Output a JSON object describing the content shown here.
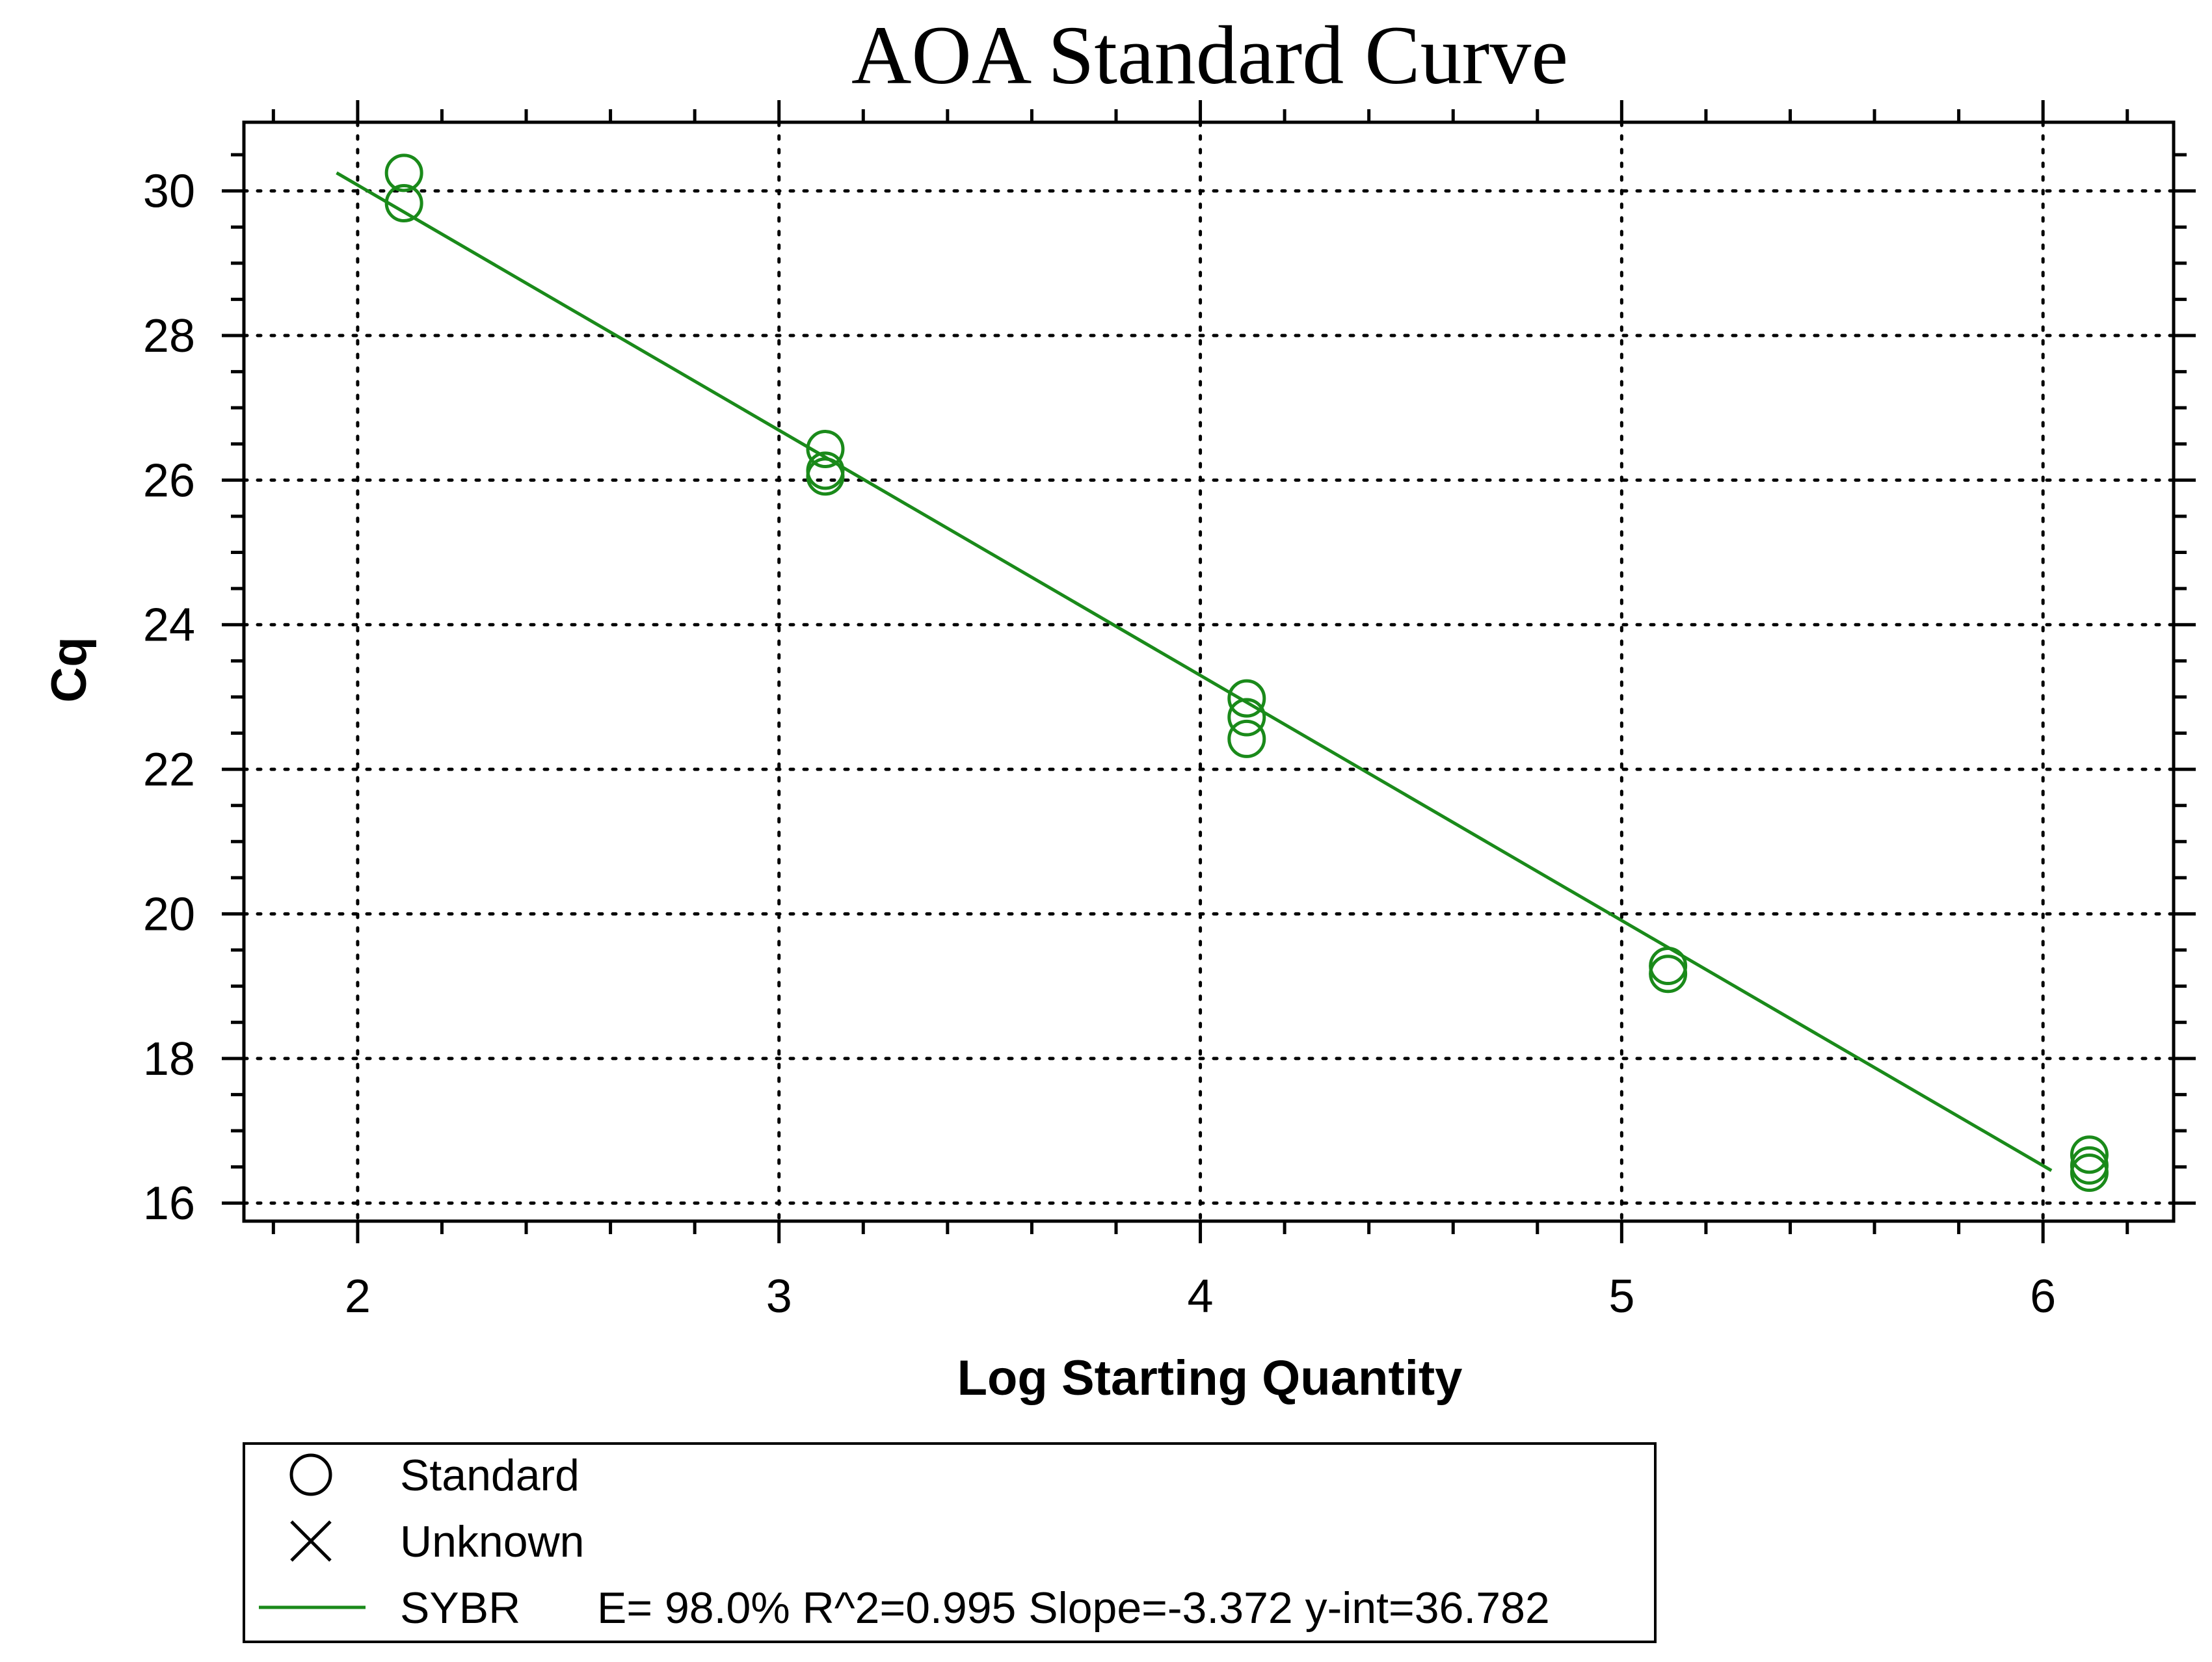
{
  "chart_data": {
    "type": "scatter",
    "title": "AOA Standard Curve",
    "xlabel": "Log Starting Quantity",
    "ylabel": "Cq",
    "xlim": [
      1.73,
      6.31
    ],
    "ylim": [
      15.75,
      30.95
    ],
    "x_ticks": [
      "2",
      "3",
      "4",
      "5",
      "6"
    ],
    "x_tick_values": [
      2,
      3,
      4,
      5,
      6
    ],
    "y_ticks": [
      "16",
      "18",
      "20",
      "22",
      "24",
      "26",
      "28",
      "30"
    ],
    "y_tick_values": [
      16,
      18,
      20,
      22,
      24,
      26,
      28,
      30
    ],
    "grid": true,
    "legend_position": "bottom-left",
    "colors": {
      "series": "#1a8a1a",
      "axis": "#000000",
      "grid": "#000000"
    },
    "series": [
      {
        "name": "Standard",
        "marker": "circle",
        "x": [
          2.11,
          2.11,
          3.11,
          3.11,
          3.11,
          4.11,
          4.11,
          4.11,
          5.11,
          5.11,
          6.11,
          6.11,
          6.11
        ],
        "y": [
          30.25,
          29.83,
          26.43,
          26.13,
          26.05,
          22.98,
          22.72,
          22.42,
          19.28,
          19.17,
          16.67,
          16.52,
          16.42
        ]
      }
    ],
    "fit_line": {
      "x": [
        1.95,
        6.02
      ],
      "y": [
        30.25,
        16.45
      ]
    },
    "legend": [
      {
        "marker": "circle",
        "label": "Standard"
      },
      {
        "marker": "cross",
        "label": "Unknown"
      },
      {
        "marker": "line",
        "label": "SYBR",
        "stats": "E= 98.0% R^2=0.995 Slope=-3.372 y-int=36.782"
      }
    ]
  }
}
